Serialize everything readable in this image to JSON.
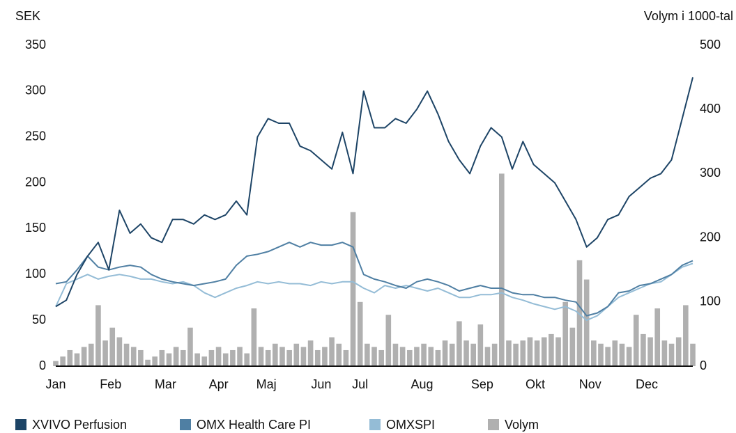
{
  "chart_data": {
    "type": "line",
    "left_axis_label": "SEK",
    "right_axis_label": "Volym i 1000-tal",
    "xlim": [
      0,
      360
    ],
    "xticks": [
      {
        "value": 0,
        "label": "Jan"
      },
      {
        "value": 31,
        "label": "Feb"
      },
      {
        "value": 62,
        "label": "Mar"
      },
      {
        "value": 92,
        "label": "Apr"
      },
      {
        "value": 119,
        "label": "Maj"
      },
      {
        "value": 150,
        "label": "Jun"
      },
      {
        "value": 172,
        "label": "Jul"
      },
      {
        "value": 207,
        "label": "Aug"
      },
      {
        "value": 241,
        "label": "Sep"
      },
      {
        "value": 271,
        "label": "Okt"
      },
      {
        "value": 302,
        "label": "Nov"
      },
      {
        "value": 334,
        "label": "Dec"
      }
    ],
    "ylim": [
      0,
      350
    ],
    "yticks": [
      0,
      50,
      100,
      150,
      200,
      250,
      300,
      350
    ],
    "y2lim": [
      0,
      500
    ],
    "y2ticks": [
      0,
      100,
      200,
      300,
      400,
      500
    ],
    "x": [
      0,
      6,
      12,
      18,
      24,
      30,
      36,
      42,
      48,
      54,
      60,
      66,
      72,
      78,
      84,
      90,
      96,
      102,
      108,
      114,
      120,
      126,
      132,
      138,
      144,
      150,
      156,
      162,
      168,
      174,
      180,
      186,
      192,
      198,
      204,
      210,
      216,
      222,
      228,
      234,
      240,
      246,
      252,
      258,
      264,
      270,
      276,
      282,
      288,
      294,
      300,
      306,
      312,
      318,
      324,
      330,
      336,
      342,
      348,
      354,
      360
    ],
    "series": [
      {
        "name": "XVIVO Perfusion",
        "color": "#1d4466",
        "type": "line",
        "axis": "y",
        "values": [
          65,
          72,
          100,
          120,
          135,
          105,
          170,
          145,
          155,
          140,
          135,
          160,
          160,
          155,
          165,
          160,
          165,
          180,
          165,
          250,
          270,
          265,
          265,
          240,
          235,
          225,
          215,
          255,
          210,
          300,
          260,
          260,
          270,
          265,
          280,
          300,
          275,
          245,
          225,
          210,
          240,
          260,
          250,
          215,
          245,
          220,
          210,
          200,
          180,
          160,
          130,
          140,
          160,
          165,
          185,
          195,
          205,
          210,
          225,
          270,
          315
        ]
      },
      {
        "name": "OMX Health Care PI",
        "color": "#4f7fa3",
        "type": "line",
        "axis": "y",
        "values": [
          90,
          92,
          105,
          120,
          108,
          105,
          108,
          110,
          108,
          100,
          95,
          92,
          90,
          88,
          90,
          92,
          95,
          110,
          120,
          122,
          125,
          130,
          135,
          130,
          135,
          132,
          132,
          135,
          130,
          100,
          95,
          92,
          88,
          85,
          92,
          95,
          92,
          88,
          82,
          85,
          88,
          85,
          85,
          80,
          78,
          78,
          75,
          75,
          72,
          70,
          55,
          58,
          65,
          80,
          82,
          88,
          90,
          95,
          100,
          110,
          115
        ]
      },
      {
        "name": "OMXSPI",
        "color": "#94bcd6",
        "type": "line",
        "axis": "y",
        "values": [
          65,
          90,
          95,
          100,
          95,
          98,
          100,
          98,
          95,
          95,
          92,
          90,
          92,
          88,
          80,
          75,
          80,
          85,
          88,
          92,
          90,
          92,
          90,
          90,
          88,
          92,
          90,
          92,
          92,
          85,
          80,
          88,
          85,
          88,
          85,
          82,
          85,
          80,
          75,
          75,
          78,
          78,
          80,
          75,
          72,
          68,
          65,
          62,
          65,
          60,
          50,
          55,
          65,
          75,
          80,
          85,
          90,
          92,
          100,
          108,
          112
        ]
      },
      {
        "name": "Volym",
        "color": "#b0b0b0",
        "type": "bar",
        "axis": "y2",
        "x": [
          0,
          4,
          8,
          12,
          16,
          20,
          24,
          28,
          32,
          36,
          40,
          44,
          48,
          52,
          56,
          60,
          64,
          68,
          72,
          76,
          80,
          84,
          88,
          92,
          96,
          100,
          104,
          108,
          112,
          116,
          120,
          124,
          128,
          132,
          136,
          140,
          144,
          148,
          152,
          156,
          160,
          164,
          168,
          172,
          176,
          180,
          184,
          188,
          192,
          196,
          200,
          204,
          208,
          212,
          216,
          220,
          224,
          228,
          232,
          236,
          240,
          244,
          248,
          252,
          256,
          260,
          264,
          268,
          272,
          276,
          280,
          284,
          288,
          292,
          296,
          300,
          304,
          308,
          312,
          316,
          320,
          324,
          328,
          332,
          336,
          340,
          344,
          348,
          352,
          356,
          360
        ],
        "values": [
          8,
          15,
          25,
          20,
          30,
          35,
          95,
          40,
          60,
          45,
          35,
          30,
          25,
          10,
          15,
          25,
          20,
          30,
          25,
          60,
          20,
          15,
          25,
          30,
          20,
          25,
          30,
          20,
          90,
          30,
          25,
          35,
          30,
          25,
          35,
          30,
          40,
          25,
          30,
          45,
          35,
          25,
          240,
          100,
          35,
          30,
          25,
          80,
          35,
          30,
          25,
          30,
          35,
          30,
          25,
          40,
          35,
          70,
          40,
          35,
          65,
          30,
          35,
          300,
          40,
          35,
          40,
          45,
          40,
          45,
          50,
          45,
          100,
          60,
          165,
          135,
          40,
          35,
          30,
          40,
          35,
          30,
          80,
          50,
          45,
          90,
          40,
          35,
          45,
          95,
          35
        ]
      }
    ]
  }
}
